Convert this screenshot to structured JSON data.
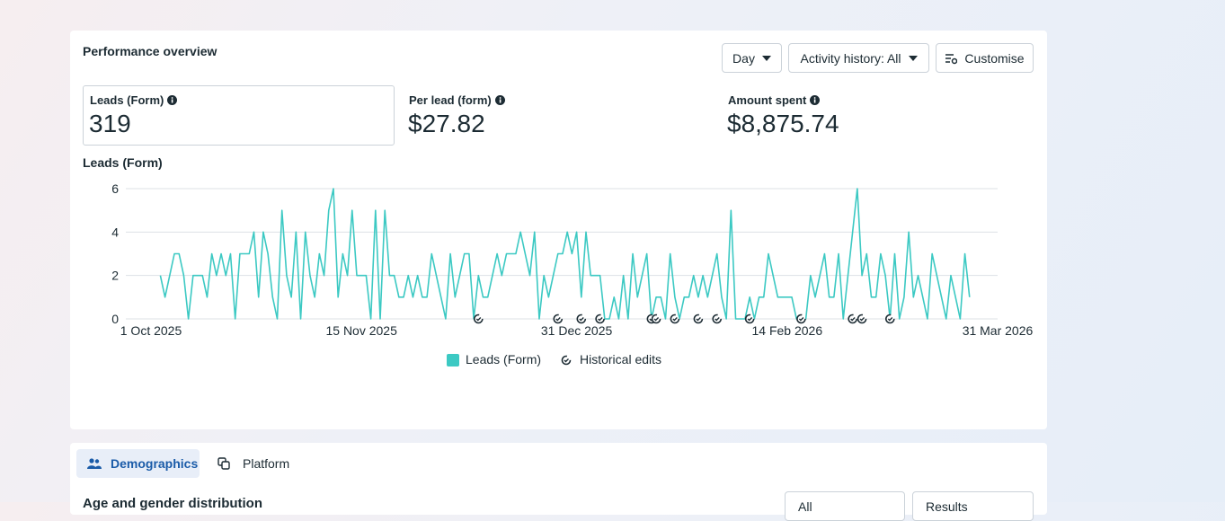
{
  "header": {
    "title": "Performance overview",
    "buttons": [
      "Day",
      "Activity history: All",
      "Customise"
    ]
  },
  "metrics": [
    {
      "label": "Leads (Form)",
      "value": "319"
    },
    {
      "label": "Per lead (form)",
      "value": "$27.82"
    },
    {
      "label": "Amount spent",
      "value": "$8,875.74"
    }
  ],
  "chart_data": {
    "type": "line",
    "title": "Leads (Form)",
    "x": [
      "3 Oct 2025",
      "4 Oct 2025",
      "5 Oct 2025",
      "6 Oct 2025",
      "7 Oct 2025",
      "8 Oct 2025",
      "9 Oct 2025",
      "10 Oct 2025",
      "11 Oct 2025",
      "12 Oct 2025",
      "13 Oct 2025",
      "14 Oct 2025",
      "15 Oct 2025",
      "16 Oct 2025",
      "17 Oct 2025",
      "18 Oct 2025",
      "19 Oct 2025",
      "20 Oct 2025",
      "21 Oct 2025",
      "22 Oct 2025",
      "23 Oct 2025",
      "24 Oct 2025",
      "25 Oct 2025",
      "26 Oct 2025",
      "27 Oct 2025",
      "28 Oct 2025",
      "29 Oct 2025",
      "30 Oct 2025",
      "31 Oct 2025",
      "1 Nov 2025",
      "2 Nov 2025",
      "3 Nov 2025",
      "4 Nov 2025",
      "5 Nov 2025",
      "6 Nov 2025",
      "7 Nov 2025",
      "8 Nov 2025",
      "9 Nov 2025",
      "10 Nov 2025",
      "11 Nov 2025",
      "12 Nov 2025",
      "13 Nov 2025",
      "14 Nov 2025",
      "15 Nov 2025",
      "16 Nov 2025",
      "17 Nov 2025",
      "18 Nov 2025",
      "19 Nov 2025",
      "20 Nov 2025",
      "21 Nov 2025",
      "22 Nov 2025",
      "23 Nov 2025",
      "24 Nov 2025",
      "25 Nov 2025",
      "26 Nov 2025",
      "27 Nov 2025",
      "28 Nov 2025",
      "29 Nov 2025",
      "30 Nov 2025",
      "1 Dec 2025",
      "2 Dec 2025",
      "3 Dec 2025",
      "4 Dec 2025",
      "5 Dec 2025",
      "6 Dec 2025",
      "7 Dec 2025",
      "8 Dec 2025",
      "9 Dec 2025",
      "10 Dec 2025",
      "11 Dec 2025",
      "12 Dec 2025",
      "13 Dec 2025",
      "14 Dec 2025",
      "15 Dec 2025",
      "16 Dec 2025",
      "17 Dec 2025",
      "18 Dec 2025",
      "19 Dec 2025",
      "20 Dec 2025",
      "21 Dec 2025",
      "22 Dec 2025",
      "23 Dec 2025",
      "24 Dec 2025",
      "25 Dec 2025",
      "26 Dec 2025",
      "27 Dec 2025",
      "28 Dec 2025",
      "29 Dec 2025",
      "30 Dec 2025",
      "31 Dec 2025",
      "1 Jan 2026",
      "2 Jan 2026",
      "3 Jan 2026",
      "4 Jan 2026",
      "5 Jan 2026",
      "6 Jan 2026",
      "7 Jan 2026",
      "8 Jan 2026",
      "9 Jan 2026",
      "10 Jan 2026",
      "11 Jan 2026",
      "12 Jan 2026",
      "13 Jan 2026",
      "14 Jan 2026",
      "15 Jan 2026",
      "16 Jan 2026",
      "17 Jan 2026",
      "18 Jan 2026",
      "19 Jan 2026",
      "20 Jan 2026",
      "21 Jan 2026",
      "22 Jan 2026",
      "23 Jan 2026",
      "24 Jan 2026",
      "25 Jan 2026",
      "26 Jan 2026",
      "27 Jan 2026",
      "28 Jan 2026",
      "29 Jan 2026",
      "30 Jan 2026",
      "31 Jan 2026",
      "1 Feb 2026",
      "2 Feb 2026",
      "3 Feb 2026",
      "4 Feb 2026",
      "5 Feb 2026",
      "6 Feb 2026",
      "7 Feb 2026",
      "8 Feb 2026",
      "9 Feb 2026",
      "10 Feb 2026",
      "11 Feb 2026",
      "12 Feb 2026",
      "13 Feb 2026",
      "14 Feb 2026",
      "15 Feb 2026",
      "16 Feb 2026",
      "17 Feb 2026",
      "18 Feb 2026",
      "19 Feb 2026",
      "20 Feb 2026",
      "21 Feb 2026",
      "22 Feb 2026",
      "23 Feb 2026",
      "24 Feb 2026",
      "25 Feb 2026",
      "26 Feb 2026",
      "27 Feb 2026",
      "28 Feb 2026",
      "1 Mar 2026",
      "2 Mar 2026",
      "3 Mar 2026",
      "4 Mar 2026",
      "5 Mar 2026",
      "6 Mar 2026",
      "7 Mar 2026",
      "8 Mar 2026",
      "9 Mar 2026",
      "10 Mar 2026",
      "11 Mar 2026",
      "12 Mar 2026",
      "13 Mar 2026",
      "14 Mar 2026",
      "15 Mar 2026",
      "16 Mar 2026",
      "17 Mar 2026",
      "18 Mar 2026",
      "19 Mar 2026",
      "20 Mar 2026",
      "21 Mar 2026",
      "22 Mar 2026",
      "23 Mar 2026",
      "24 Mar 2026",
      "25 Mar 2026"
    ],
    "series": [
      {
        "name": "Leads (Form)",
        "color": "#3cc9c3",
        "values": [
          2,
          1,
          2,
          3,
          3,
          2,
          0,
          2,
          2,
          2,
          1,
          3,
          2,
          3,
          2,
          3,
          0,
          3,
          3,
          3,
          4,
          1,
          4,
          3,
          1,
          0,
          5,
          2,
          1,
          4,
          0,
          4,
          2,
          1,
          3,
          2,
          5,
          6,
          1,
          3,
          2,
          5,
          2,
          2,
          2,
          0,
          5,
          0,
          5,
          2,
          2,
          1,
          1,
          2,
          1,
          2,
          1,
          1,
          3,
          2,
          1,
          0,
          3,
          1,
          2,
          3,
          3,
          0,
          2,
          1,
          1,
          2,
          3,
          2,
          3,
          3,
          3,
          4,
          3,
          2,
          4,
          0,
          2,
          1,
          2,
          3,
          3,
          4,
          3,
          4,
          1,
          4,
          2,
          2,
          2,
          0,
          0,
          1,
          0,
          2,
          0,
          3,
          1,
          2,
          3,
          0,
          1,
          1,
          0,
          3,
          1,
          0,
          1,
          1,
          2,
          1,
          2,
          1,
          2,
          3,
          1,
          0,
          5,
          0,
          0,
          0,
          1,
          0,
          1,
          1,
          3,
          2,
          1,
          1,
          1,
          1,
          0,
          0,
          0,
          2,
          1,
          2,
          3,
          1,
          1,
          3,
          0,
          2,
          4,
          6,
          2,
          3,
          1,
          1,
          3,
          2,
          0,
          3,
          0,
          1,
          4,
          1,
          2,
          1,
          0,
          3,
          2,
          1,
          0,
          2,
          1,
          0,
          3,
          1
        ]
      }
    ],
    "xlim": [
      "1 Oct 2025",
      "31 Mar 2026"
    ],
    "xticks": [
      "1 Oct 2025",
      "15 Nov 2025",
      "31 Dec 2025",
      "14 Feb 2026",
      "31 Mar 2026"
    ],
    "ylim": [
      0,
      6
    ],
    "yticks": [
      0,
      2,
      4,
      6
    ],
    "grid": true,
    "historical_edits": {
      "name": "Historical edits",
      "x": [
        "10 Dec 2025",
        "27 Dec 2025",
        "1 Jan 2026",
        "5 Jan 2026",
        "16 Jan 2026",
        "17 Jan 2026",
        "21 Jan 2026",
        "26 Jan 2026",
        "30 Jan 2026",
        "6 Feb 2026",
        "17 Feb 2026",
        "28 Feb 2026",
        "2 Mar 2026",
        "8 Mar 2026"
      ]
    }
  },
  "tabs": [
    "Demographics",
    "Platform"
  ],
  "section": {
    "title": "Age and gender distribution",
    "buttons": [
      "All",
      "Results"
    ]
  }
}
